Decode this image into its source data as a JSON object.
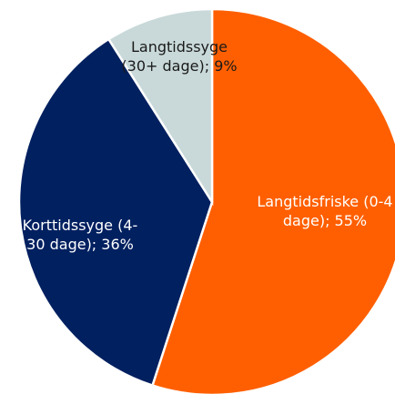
{
  "chart_data": {
    "type": "pie",
    "values": [
      55,
      36,
      9
    ],
    "value_labels": [
      "Langtidsfriske (0-4 dage); 55%",
      "Korttidssyge (4-30 dage); 36%",
      "Langtidssyge (30+ dage); 9%"
    ],
    "colors": [
      "#ff5f00",
      "#002060",
      "#c9d9d9"
    ],
    "label_colors": [
      "#ffffff",
      "#ffffff",
      "#1a1a1a"
    ]
  }
}
